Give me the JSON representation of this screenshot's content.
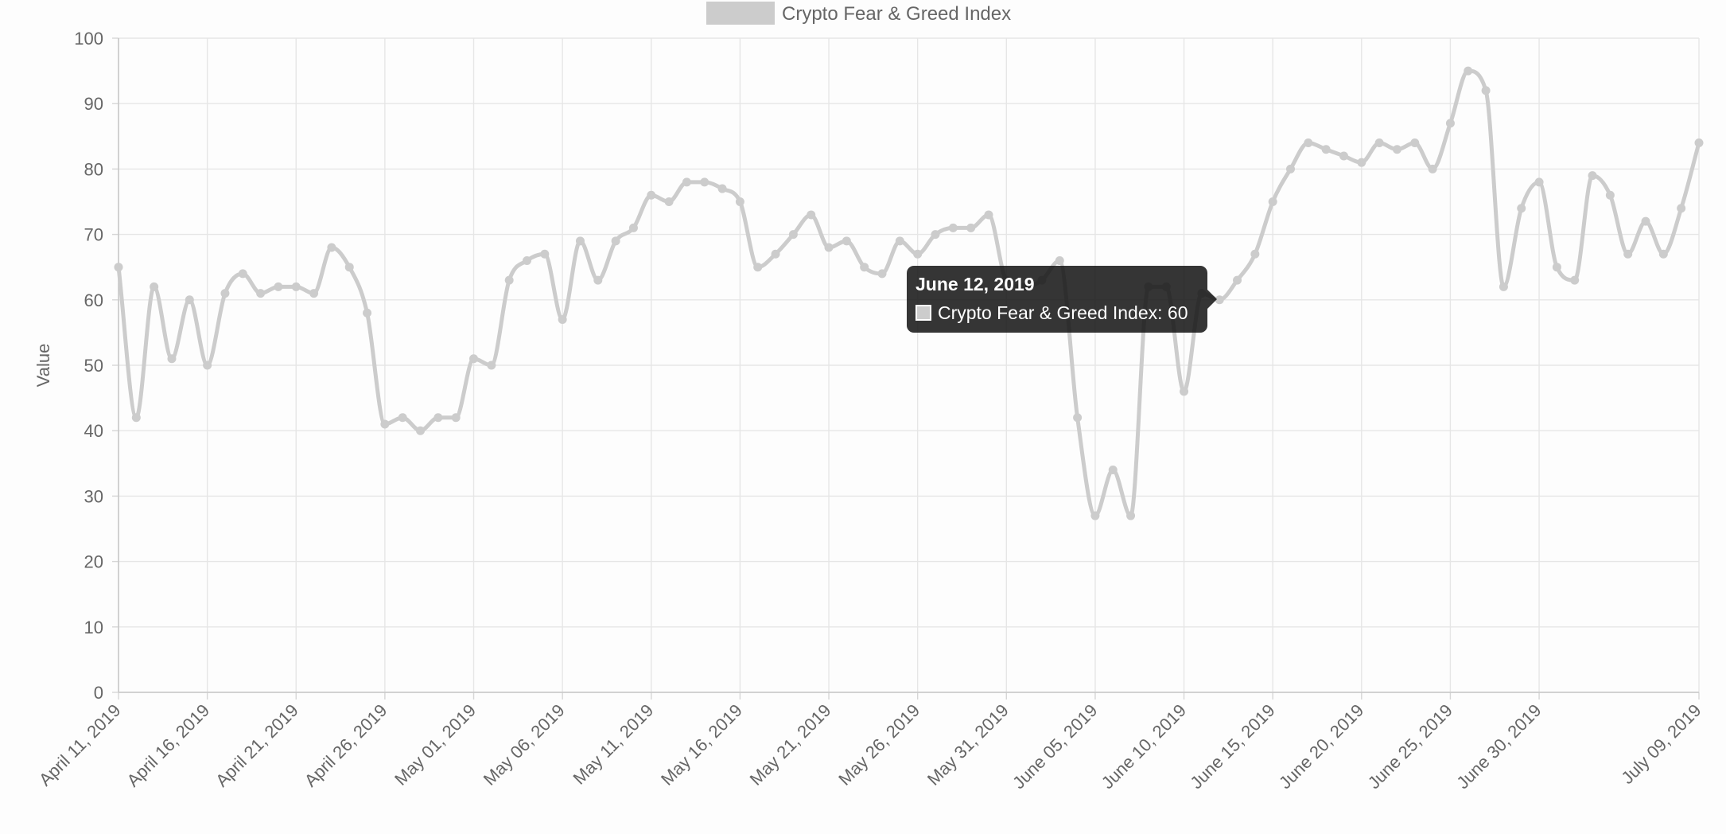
{
  "colors": {
    "series": "#cccccc",
    "grid": "#e6e6e6",
    "text": "#666666",
    "tooltip_bg": "#141414"
  },
  "tooltip": {
    "title": "June 12, 2019",
    "series_name": "Crypto Fear & Greed Index",
    "value": 60,
    "label": "Crypto Fear & Greed Index: 60"
  },
  "chart_data": {
    "type": "line",
    "ylabel": "Value",
    "xlabel": "",
    "ylim": [
      0,
      100
    ],
    "yticks": [
      0,
      10,
      20,
      30,
      40,
      50,
      60,
      70,
      80,
      90,
      100
    ],
    "xlim": [
      "2019-04-11",
      "2019-07-09"
    ],
    "xticks": [
      {
        "date": "2019-04-11",
        "label": "April 11, 2019"
      },
      {
        "date": "2019-04-16",
        "label": "April 16, 2019"
      },
      {
        "date": "2019-04-21",
        "label": "April 21, 2019"
      },
      {
        "date": "2019-04-26",
        "label": "April 26, 2019"
      },
      {
        "date": "2019-05-01",
        "label": "May 01, 2019"
      },
      {
        "date": "2019-05-06",
        "label": "May 06, 2019"
      },
      {
        "date": "2019-05-11",
        "label": "May 11, 2019"
      },
      {
        "date": "2019-05-16",
        "label": "May 16, 2019"
      },
      {
        "date": "2019-05-21",
        "label": "May 21, 2019"
      },
      {
        "date": "2019-05-26",
        "label": "May 26, 2019"
      },
      {
        "date": "2019-05-31",
        "label": "May 31, 2019"
      },
      {
        "date": "2019-06-05",
        "label": "June 05, 2019"
      },
      {
        "date": "2019-06-10",
        "label": "June 10, 2019"
      },
      {
        "date": "2019-06-15",
        "label": "June 15, 2019"
      },
      {
        "date": "2019-06-20",
        "label": "June 20, 2019"
      },
      {
        "date": "2019-06-25",
        "label": "June 25, 2019"
      },
      {
        "date": "2019-06-30",
        "label": "June 30, 2019"
      },
      {
        "date": "2019-07-09",
        "label": "July 09, 2019"
      }
    ],
    "grid": true,
    "legend": {
      "position": "top-center",
      "entries": [
        "Crypto Fear & Greed Index"
      ]
    },
    "series": [
      {
        "name": "Crypto Fear & Greed Index",
        "color": "#cccccc",
        "points": [
          {
            "x": "2019-04-11",
            "y": 65
          },
          {
            "x": "2019-04-12",
            "y": 42
          },
          {
            "x": "2019-04-13",
            "y": 62
          },
          {
            "x": "2019-04-14",
            "y": 51
          },
          {
            "x": "2019-04-15",
            "y": 60
          },
          {
            "x": "2019-04-16",
            "y": 50
          },
          {
            "x": "2019-04-17",
            "y": 61
          },
          {
            "x": "2019-04-18",
            "y": 64
          },
          {
            "x": "2019-04-19",
            "y": 61
          },
          {
            "x": "2019-04-20",
            "y": 62
          },
          {
            "x": "2019-04-21",
            "y": 62
          },
          {
            "x": "2019-04-22",
            "y": 61
          },
          {
            "x": "2019-04-23",
            "y": 68
          },
          {
            "x": "2019-04-24",
            "y": 65
          },
          {
            "x": "2019-04-25",
            "y": 58
          },
          {
            "x": "2019-04-26",
            "y": 41
          },
          {
            "x": "2019-04-27",
            "y": 42
          },
          {
            "x": "2019-04-28",
            "y": 40
          },
          {
            "x": "2019-04-29",
            "y": 42
          },
          {
            "x": "2019-04-30",
            "y": 42
          },
          {
            "x": "2019-05-01",
            "y": 51
          },
          {
            "x": "2019-05-02",
            "y": 50
          },
          {
            "x": "2019-05-03",
            "y": 63
          },
          {
            "x": "2019-05-04",
            "y": 66
          },
          {
            "x": "2019-05-05",
            "y": 67
          },
          {
            "x": "2019-05-06",
            "y": 57
          },
          {
            "x": "2019-05-07",
            "y": 69
          },
          {
            "x": "2019-05-08",
            "y": 63
          },
          {
            "x": "2019-05-09",
            "y": 69
          },
          {
            "x": "2019-05-10",
            "y": 71
          },
          {
            "x": "2019-05-11",
            "y": 76
          },
          {
            "x": "2019-05-12",
            "y": 75
          },
          {
            "x": "2019-05-13",
            "y": 78
          },
          {
            "x": "2019-05-14",
            "y": 78
          },
          {
            "x": "2019-05-15",
            "y": 77
          },
          {
            "x": "2019-05-16",
            "y": 75
          },
          {
            "x": "2019-05-17",
            "y": 65
          },
          {
            "x": "2019-05-18",
            "y": 67
          },
          {
            "x": "2019-05-19",
            "y": 70
          },
          {
            "x": "2019-05-20",
            "y": 73
          },
          {
            "x": "2019-05-21",
            "y": 68
          },
          {
            "x": "2019-05-22",
            "y": 69
          },
          {
            "x": "2019-05-23",
            "y": 65
          },
          {
            "x": "2019-05-24",
            "y": 64
          },
          {
            "x": "2019-05-25",
            "y": 69
          },
          {
            "x": "2019-05-26",
            "y": 67
          },
          {
            "x": "2019-05-27",
            "y": 70
          },
          {
            "x": "2019-05-28",
            "y": 71
          },
          {
            "x": "2019-05-29",
            "y": 71
          },
          {
            "x": "2019-05-30",
            "y": 73
          },
          {
            "x": "2019-05-31",
            "y": 63
          },
          {
            "x": "2019-06-01",
            "y": 62
          },
          {
            "x": "2019-06-02",
            "y": 63
          },
          {
            "x": "2019-06-03",
            "y": 66
          },
          {
            "x": "2019-06-04",
            "y": 42
          },
          {
            "x": "2019-06-05",
            "y": 27
          },
          {
            "x": "2019-06-06",
            "y": 34
          },
          {
            "x": "2019-06-07",
            "y": 27
          },
          {
            "x": "2019-06-08",
            "y": 62
          },
          {
            "x": "2019-06-09",
            "y": 62
          },
          {
            "x": "2019-06-10",
            "y": 46
          },
          {
            "x": "2019-06-11",
            "y": 61
          },
          {
            "x": "2019-06-12",
            "y": 60
          },
          {
            "x": "2019-06-13",
            "y": 63
          },
          {
            "x": "2019-06-14",
            "y": 67
          },
          {
            "x": "2019-06-15",
            "y": 75
          },
          {
            "x": "2019-06-16",
            "y": 80
          },
          {
            "x": "2019-06-17",
            "y": 84
          },
          {
            "x": "2019-06-18",
            "y": 83
          },
          {
            "x": "2019-06-19",
            "y": 82
          },
          {
            "x": "2019-06-20",
            "y": 81
          },
          {
            "x": "2019-06-21",
            "y": 84
          },
          {
            "x": "2019-06-22",
            "y": 83
          },
          {
            "x": "2019-06-23",
            "y": 84
          },
          {
            "x": "2019-06-24",
            "y": 80
          },
          {
            "x": "2019-06-25",
            "y": 87
          },
          {
            "x": "2019-06-26",
            "y": 95
          },
          {
            "x": "2019-06-27",
            "y": 92
          },
          {
            "x": "2019-06-28",
            "y": 62
          },
          {
            "x": "2019-06-29",
            "y": 74
          },
          {
            "x": "2019-06-30",
            "y": 78
          },
          {
            "x": "2019-07-01",
            "y": 65
          },
          {
            "x": "2019-07-02",
            "y": 63
          },
          {
            "x": "2019-07-03",
            "y": 79
          },
          {
            "x": "2019-07-04",
            "y": 76
          },
          {
            "x": "2019-07-05",
            "y": 67
          },
          {
            "x": "2019-07-06",
            "y": 72
          },
          {
            "x": "2019-07-07",
            "y": 67
          },
          {
            "x": "2019-07-08",
            "y": 74
          },
          {
            "x": "2019-07-09",
            "y": 84
          }
        ]
      }
    ]
  }
}
